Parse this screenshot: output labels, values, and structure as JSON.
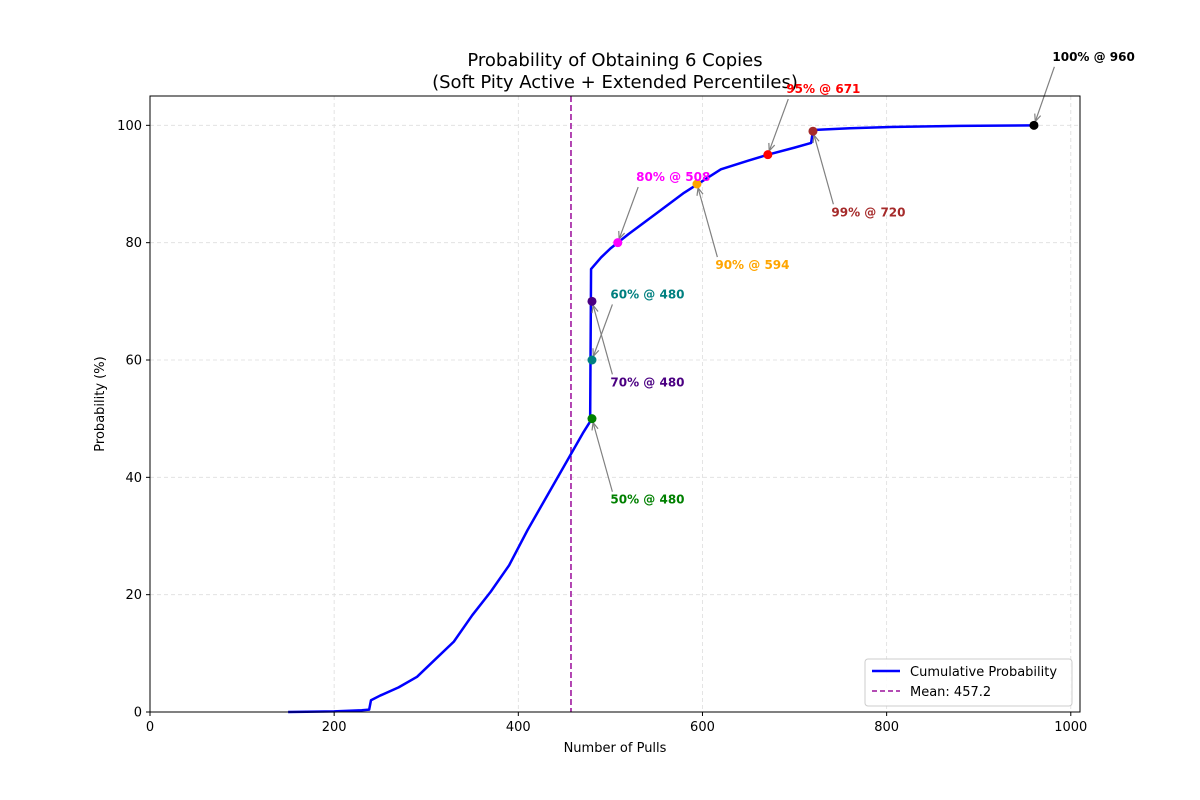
{
  "chart_data": {
    "type": "line",
    "title_line1": "Probability of Obtaining 6 Copies",
    "title_line2": "(Soft Pity Active + Extended Percentiles)",
    "xlabel": "Number of Pulls",
    "ylabel": "Probability (%)",
    "xlim": [
      0,
      1010
    ],
    "ylim": [
      0,
      105
    ],
    "xticks": [
      0,
      200,
      400,
      600,
      800,
      1000
    ],
    "yticks": [
      0,
      20,
      40,
      60,
      80,
      100
    ],
    "grid": true,
    "series": [
      {
        "name": "Cumulative Probability",
        "color": "#0000ff",
        "points": [
          [
            150,
            0
          ],
          [
            200,
            0.1
          ],
          [
            230,
            0.3
          ],
          [
            238,
            0.4
          ],
          [
            240,
            2.0
          ],
          [
            250,
            2.8
          ],
          [
            270,
            4.2
          ],
          [
            290,
            6.0
          ],
          [
            310,
            9.0
          ],
          [
            330,
            12.0
          ],
          [
            350,
            16.5
          ],
          [
            370,
            20.5
          ],
          [
            390,
            25.0
          ],
          [
            410,
            31.0
          ],
          [
            430,
            36.5
          ],
          [
            450,
            42.0
          ],
          [
            470,
            47.5
          ],
          [
            478,
            49.5
          ],
          [
            479,
            75.5
          ],
          [
            490,
            77.5
          ],
          [
            500,
            79.0
          ],
          [
            520,
            81.5
          ],
          [
            550,
            85.0
          ],
          [
            580,
            88.5
          ],
          [
            600,
            90.5
          ],
          [
            620,
            92.5
          ],
          [
            650,
            94.0
          ],
          [
            671,
            95.0
          ],
          [
            700,
            96.2
          ],
          [
            718,
            97.0
          ],
          [
            720,
            99.2
          ],
          [
            760,
            99.5
          ],
          [
            800,
            99.7
          ],
          [
            880,
            99.9
          ],
          [
            960,
            100.0
          ]
        ]
      }
    ],
    "mean": {
      "value": 457.2,
      "color": "#aa33aa",
      "label": "Mean: 457.2"
    },
    "legend": {
      "position": "bottom-right",
      "entries": [
        "Cumulative Probability",
        "Mean: 457.2"
      ]
    },
    "annotations": [
      {
        "label": "50% @ 480",
        "x": 480,
        "y": 50,
        "text_x": 500,
        "text_y": 35.5,
        "color": "#008000",
        "anchor": "start"
      },
      {
        "label": "60% @ 480",
        "x": 480,
        "y": 60,
        "text_x": 500,
        "text_y": 70.5,
        "color": "#008080",
        "anchor": "start"
      },
      {
        "label": "70% @ 480",
        "x": 480,
        "y": 70,
        "text_x": 500,
        "text_y": 55.5,
        "color": "#4b0082",
        "anchor": "start"
      },
      {
        "label": "80% @ 508",
        "x": 508,
        "y": 80,
        "text_x": 528,
        "text_y": 90.5,
        "color": "#ff00ff",
        "anchor": "start"
      },
      {
        "label": "90% @ 594",
        "x": 594,
        "y": 90,
        "text_x": 614,
        "text_y": 75.5,
        "color": "#ffa500",
        "anchor": "start"
      },
      {
        "label": "95% @ 671",
        "x": 671,
        "y": 95,
        "text_x": 691,
        "text_y": 105.5,
        "color": "#ff0000",
        "anchor": "start"
      },
      {
        "label": "99% @ 720",
        "x": 720,
        "y": 99,
        "text_x": 740,
        "text_y": 84.5,
        "color": "#a52a2a",
        "anchor": "start"
      },
      {
        "label": "100% @ 960",
        "x": 960,
        "y": 100,
        "text_x": 980,
        "text_y": 111.0,
        "color": "#000000",
        "anchor": "start"
      }
    ]
  }
}
